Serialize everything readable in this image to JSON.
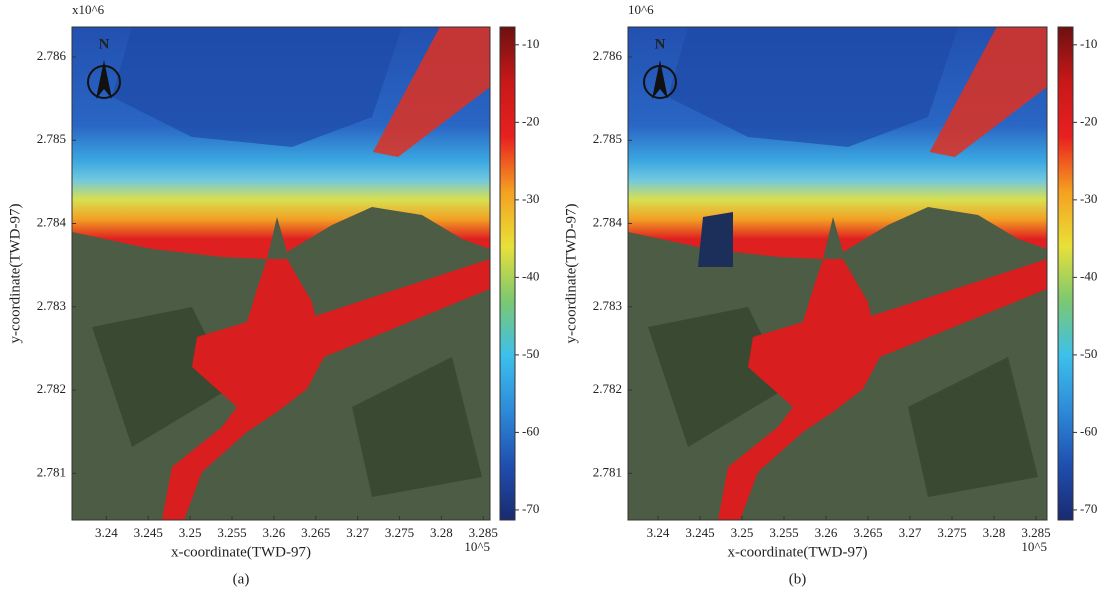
{
  "chart_data": [
    {
      "type": "contour",
      "caption": "(a)",
      "x_label": "x-coordinate(TWD-97)",
      "y_label": "y-coordinate(TWD-97)",
      "x_offset_label": "10^5",
      "y_offset_label": "x10^6",
      "north_label": "N",
      "xlim": [
        3.2359,
        3.2858
      ],
      "xticks": [
        3.24,
        3.245,
        3.25,
        3.255,
        3.26,
        3.265,
        3.27,
        3.275,
        3.28,
        3.285
      ],
      "ylim": [
        2.78044,
        2.78636
      ],
      "yticks": [
        2.781,
        2.782,
        2.783,
        2.784,
        2.785,
        2.786
      ],
      "clim": [
        -71.3,
        -7.7
      ],
      "cticks": [
        -10,
        -20,
        -30,
        -40,
        -50,
        -60,
        -70
      ],
      "colormap": [
        "#1a2a70",
        "#1f4fb0",
        "#2e8ad8",
        "#3cc0ec",
        "#7cc870",
        "#e8e038",
        "#f5a020",
        "#e82020",
        "#c81818",
        "#6e1010"
      ]
    },
    {
      "type": "contour",
      "caption": "(b)",
      "x_label": "x-coordinate(TWD-97)",
      "y_label": "y-coordinate(TWD-97)",
      "x_offset_label": "10^5",
      "y_offset_label": "10^6",
      "north_label": "N",
      "xlim": [
        3.23643,
        3.28631
      ],
      "xticks": [
        3.24,
        3.245,
        3.25,
        3.255,
        3.26,
        3.265,
        3.27,
        3.275,
        3.28,
        3.285
      ],
      "ylim": [
        2.78044,
        2.78636
      ],
      "yticks": [
        2.781,
        2.782,
        2.783,
        2.784,
        2.785,
        2.786
      ],
      "clim": [
        -71.3,
        -7.7
      ],
      "cticks": [
        -10,
        -20,
        -30,
        -40,
        -50,
        -60,
        -70
      ],
      "colormap": [
        "#1a2a70",
        "#1f4fb0",
        "#2e8ad8",
        "#3cc0ec",
        "#7cc870",
        "#e8e038",
        "#f5a020",
        "#e82020",
        "#c81818",
        "#6e1010"
      ]
    }
  ]
}
